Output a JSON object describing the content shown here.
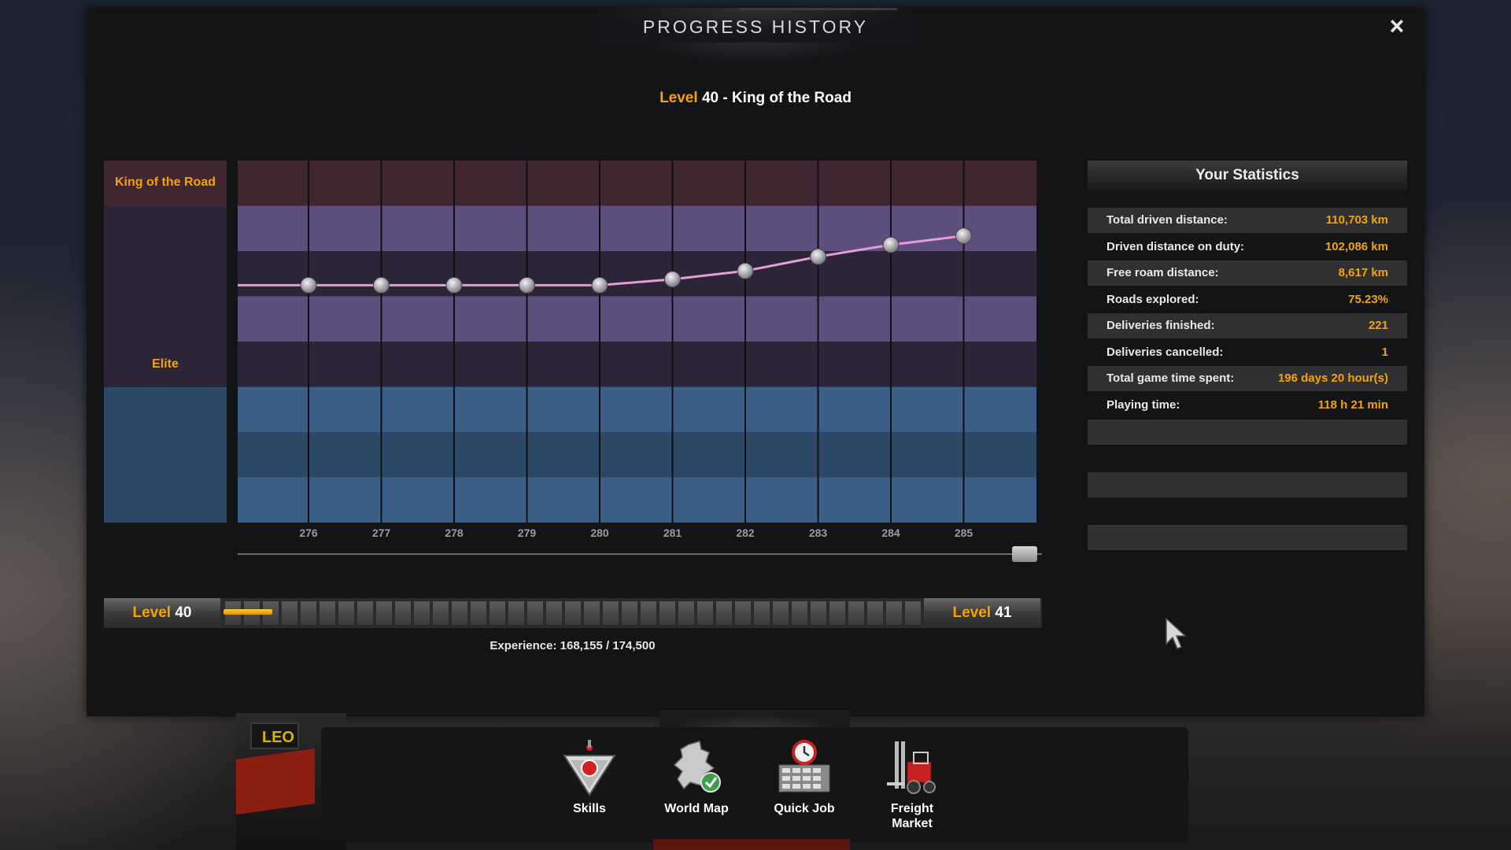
{
  "window": {
    "title": "PROGRESS HISTORY",
    "close_icon": "×"
  },
  "level_title": {
    "prefix": "Level",
    "text": "40 - King of the Road"
  },
  "ranks": [
    "King of the Road",
    "Elite"
  ],
  "chart_data": {
    "type": "line",
    "x": [
      "276",
      "277",
      "278",
      "279",
      "280",
      "281",
      "282",
      "283",
      "284",
      "285"
    ],
    "series": [
      {
        "values": [
          164000,
          164000,
          164000,
          164000,
          164000,
          164500,
          165200,
          166400,
          167400,
          168155
        ]
      }
    ],
    "ylim": [
      144000,
      174500
    ],
    "colors": {
      "line": "#e89bd6"
    }
  },
  "level_bar": {
    "left_prefix": "Level",
    "left_level": "40",
    "right_prefix": "Level",
    "right_level": "41",
    "segments": 37,
    "fill_fraction": 0.0698
  },
  "experience": "Experience: 168,155 / 174,500",
  "statistics": {
    "title": "Your Statistics",
    "rows": [
      {
        "label": "Total driven distance:",
        "value": "110,703 km"
      },
      {
        "label": "Driven distance on duty:",
        "value": "102,086 km"
      },
      {
        "label": "Free roam distance:",
        "value": "8,617 km"
      },
      {
        "label": "Roads explored:",
        "value": "75.23%"
      },
      {
        "label": "Deliveries finished:",
        "value": "221"
      },
      {
        "label": "Deliveries cancelled:",
        "value": "1"
      },
      {
        "label": "Total game time spent:",
        "value": "196 days 20 hour(s)"
      },
      {
        "label": "Playing time:",
        "value": "118 h 21 min"
      }
    ]
  },
  "plate_text": "LEO",
  "dock": {
    "items": [
      {
        "label": "Skills",
        "icon": "skills-icon"
      },
      {
        "label": "World Map",
        "icon": "world-map-icon"
      },
      {
        "label": "Quick Job",
        "icon": "quick-job-icon"
      },
      {
        "label": "Freight Market",
        "icon": "freight-market-icon"
      }
    ]
  },
  "colors": {
    "accent": "#f5a300",
    "king_band": "#3f2631",
    "elite_band": "#2b2537",
    "blue_band": "#2d4866"
  }
}
